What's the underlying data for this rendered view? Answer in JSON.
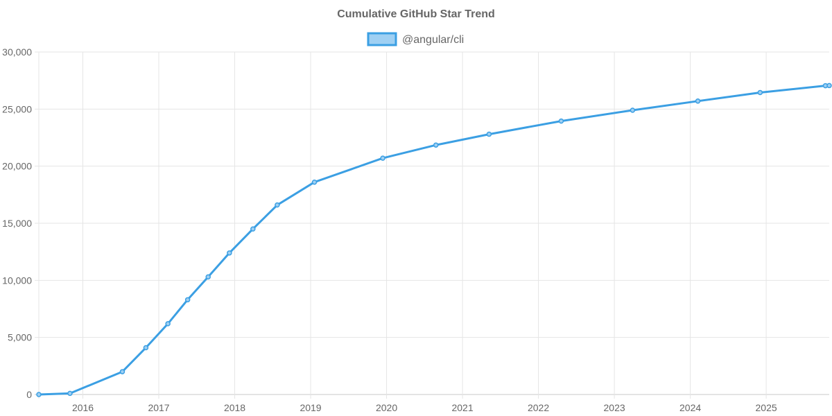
{
  "chart_data": {
    "type": "line",
    "title": "Cumulative GitHub Star Trend",
    "xlabel": "",
    "ylabel": "",
    "x_tick_labels": [
      "2016",
      "2017",
      "2018",
      "2019",
      "2020",
      "2021",
      "2022",
      "2023",
      "2024",
      "2025"
    ],
    "y_tick_labels": [
      "0",
      "5,000",
      "10,000",
      "15,000",
      "20,000",
      "25,000",
      "30,000"
    ],
    "ylim": [
      0,
      30000
    ],
    "xlim": [
      2015.42,
      2025.83
    ],
    "grid": true,
    "legend_position": "top-center",
    "series": [
      {
        "name": "@angular/cli",
        "color": "#3b9fe3",
        "fill_color": "#9fd0f3",
        "x": [
          2015.42,
          2015.83,
          2016.52,
          2016.83,
          2017.12,
          2017.38,
          2017.65,
          2017.93,
          2018.24,
          2018.56,
          2019.05,
          2019.95,
          2020.65,
          2021.35,
          2022.3,
          2023.24,
          2024.1,
          2024.92,
          2025.78,
          2025.83
        ],
        "values": [
          0,
          100,
          2000,
          4100,
          6200,
          8300,
          10300,
          12400,
          14500,
          16600,
          18600,
          20700,
          21850,
          22800,
          23950,
          24900,
          25700,
          26450,
          27050,
          27060
        ]
      }
    ]
  }
}
